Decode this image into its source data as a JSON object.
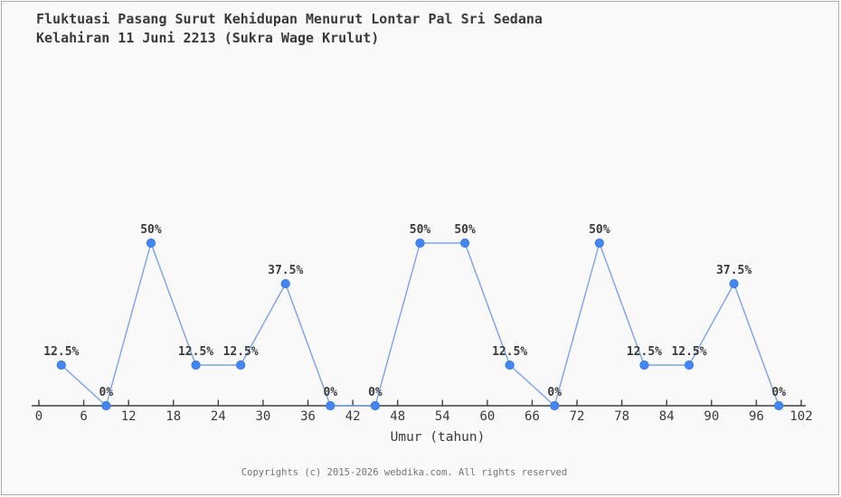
{
  "title": {
    "line1": "Fluktuasi Pasang Surut Kehidupan Menurut Lontar Pal Sri Sedana",
    "line2": "Kelahiran 11 Juni 2213 (Sukra Wage Krulut)"
  },
  "chart_data": {
    "type": "line",
    "title": "Fluktuasi Pasang Surut Kehidupan Menurut Lontar Pal Sri Sedana Kelahiran 11 Juni 2213 (Sukra Wage Krulut)",
    "x": [
      3,
      9,
      15,
      21,
      27,
      33,
      39,
      45,
      51,
      57,
      63,
      69,
      75,
      81,
      87,
      93,
      99
    ],
    "values": [
      12.5,
      0,
      50,
      12.5,
      12.5,
      37.5,
      0,
      0,
      50,
      50,
      12.5,
      0,
      50,
      12.5,
      12.5,
      37.5,
      0
    ],
    "point_labels": [
      "12.5%",
      "0%",
      "50%",
      "12.5%",
      "12.5%",
      "37.5%",
      "0%",
      "0%",
      "50%",
      "50%",
      "12.5%",
      "0%",
      "50%",
      "12.5%",
      "12.5%",
      "37.5%",
      "0%"
    ],
    "x_ticks": [
      0,
      6,
      12,
      18,
      24,
      30,
      36,
      42,
      48,
      54,
      60,
      66,
      72,
      78,
      84,
      90,
      96,
      102
    ],
    "xlabel": "Umur (tahun)",
    "ylabel": "",
    "xlim": [
      0,
      102
    ],
    "ylim": [
      0,
      100
    ],
    "grid": false,
    "legend": null,
    "colors": {
      "point": "#4285f4",
      "point_edge": "#3a78e0",
      "line": "#7aa3ec",
      "axis": "#3f3f3f",
      "label_text": "#3a3a3a"
    }
  },
  "footer": {
    "copyright": "Copyrights (c) 2015-2026 webdika.com. All rights reserved"
  }
}
